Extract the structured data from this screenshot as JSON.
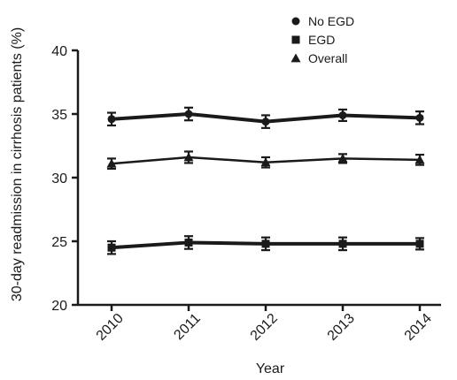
{
  "chart_data": {
    "type": "line",
    "title": "",
    "xlabel": "Year",
    "ylabel": "30-day readmission in cirrhosis patients (%)",
    "categories": [
      "2010",
      "2011",
      "2012",
      "2013",
      "2014"
    ],
    "ylim": [
      20,
      40
    ],
    "yticks": [
      20,
      25,
      30,
      35,
      40
    ],
    "grid": false,
    "legend_position": "top-right",
    "series": [
      {
        "name": "No EGD",
        "marker": "circle",
        "line_weight": "thick",
        "values": [
          34.6,
          35.0,
          34.4,
          34.9,
          34.7
        ],
        "error": [
          0.5,
          0.5,
          0.5,
          0.45,
          0.5
        ]
      },
      {
        "name": "EGD",
        "marker": "square",
        "line_weight": "thick",
        "values": [
          24.5,
          24.9,
          24.8,
          24.8,
          24.8
        ],
        "error": [
          0.5,
          0.5,
          0.5,
          0.5,
          0.45
        ]
      },
      {
        "name": "Overall",
        "marker": "triangle",
        "line_weight": "normal",
        "values": [
          31.1,
          31.6,
          31.2,
          31.5,
          31.4
        ],
        "error": [
          0.4,
          0.45,
          0.4,
          0.35,
          0.4
        ]
      }
    ],
    "colors": {
      "axis": "#1a1a1a",
      "series": "#1a1a1a"
    }
  }
}
